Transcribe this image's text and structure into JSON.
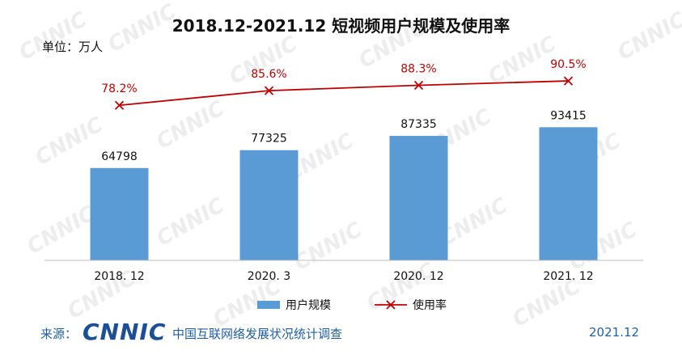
{
  "chart_data": {
    "type": "bar",
    "title": "2018.12-2021.12 短视频用户规模及使用率",
    "unit_label": "单位：万人",
    "categories": [
      "2018. 12",
      "2020. 3",
      "2020. 12",
      "2021. 12"
    ],
    "series": [
      {
        "name": "用户规模",
        "type": "bar",
        "values": [
          64798,
          77325,
          87335,
          93415
        ],
        "labels": [
          "64798",
          "77325",
          "87335",
          "93415"
        ]
      },
      {
        "name": "使用率",
        "type": "line",
        "values": [
          78.2,
          85.6,
          88.3,
          90.5
        ],
        "labels": [
          "78.2%",
          "85.6%",
          "88.3%",
          "90.5%"
        ]
      }
    ],
    "ylim": [
      0,
      160000
    ],
    "y2lim": [
      0,
      115
    ],
    "grid": false,
    "legend_position": "bottom"
  },
  "colors": {
    "bar": "#5b9bd5",
    "line": "#c00000",
    "axis": "#bfbfbf",
    "source_text": "#1f5fa8",
    "logo": "#1b4f97"
  },
  "footer": {
    "source_label": "来源：",
    "logo_text": "CNNIC",
    "source_name": "中国互联网络发展状况统计调查",
    "date": "2021.12"
  },
  "watermark_text": "CNNIC"
}
